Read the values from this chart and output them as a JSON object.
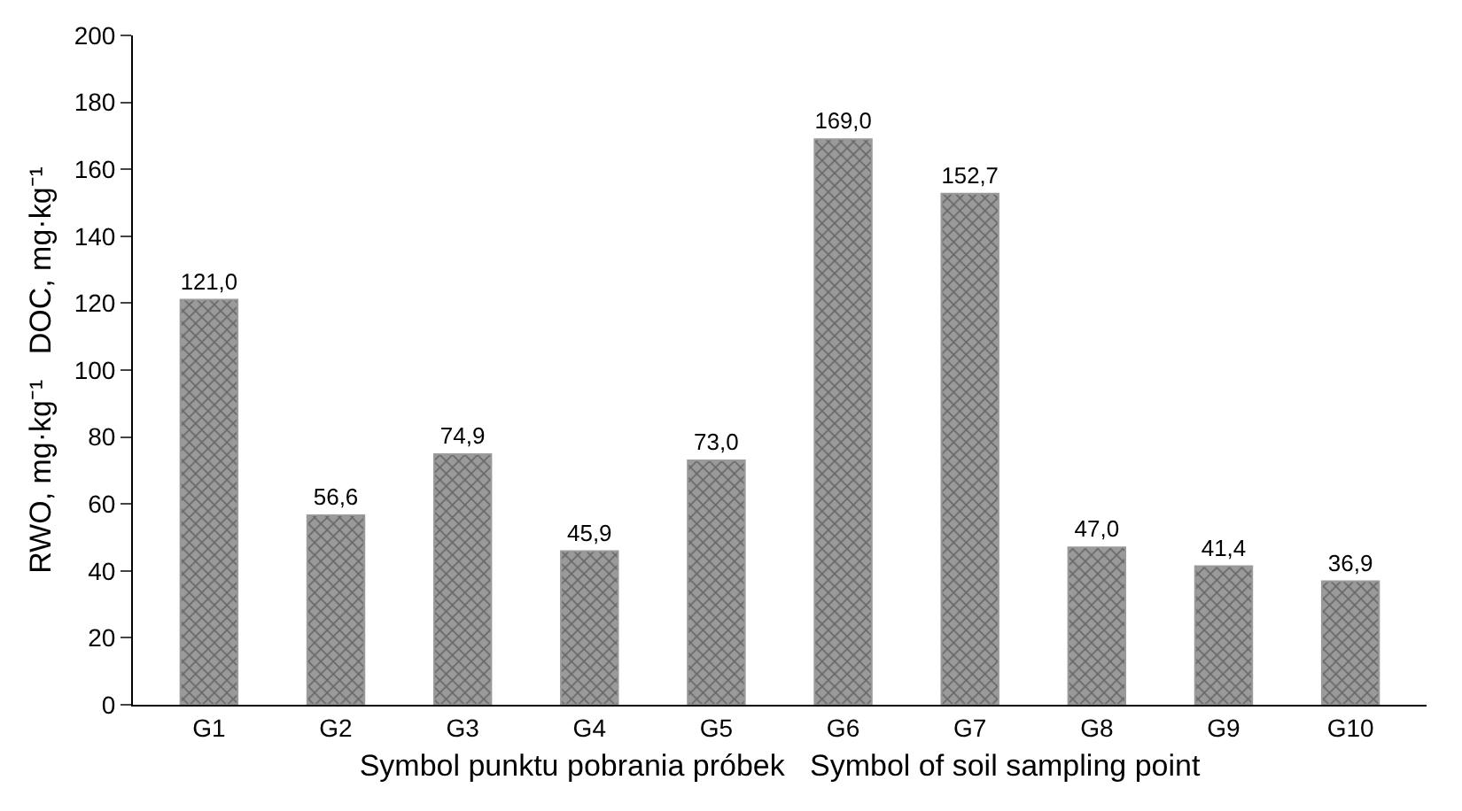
{
  "chart_data": {
    "type": "bar",
    "categories": [
      "G1",
      "G2",
      "G3",
      "G4",
      "G5",
      "G6",
      "G7",
      "G8",
      "G9",
      "G10"
    ],
    "values": [
      121.0,
      56.6,
      74.9,
      45.9,
      73.0,
      169.0,
      152.7,
      47.0,
      41.4,
      36.9
    ],
    "value_labels": [
      "121,0",
      "56,6",
      "74,9",
      "45,9",
      "73,0",
      "169,0",
      "152,7",
      "47,0",
      "41,4",
      "36,9"
    ],
    "color": "#9a9a9a",
    "xlabel": "Symbol punktu pobrania próbek   Symbol of soil sampling point",
    "ylabel": "RWO, mg·kg⁻¹   DOC, mg·kg⁻¹",
    "ylim": [
      0,
      200
    ],
    "yticks": [
      0,
      20,
      40,
      60,
      80,
      100,
      120,
      140,
      160,
      180,
      200
    ]
  }
}
